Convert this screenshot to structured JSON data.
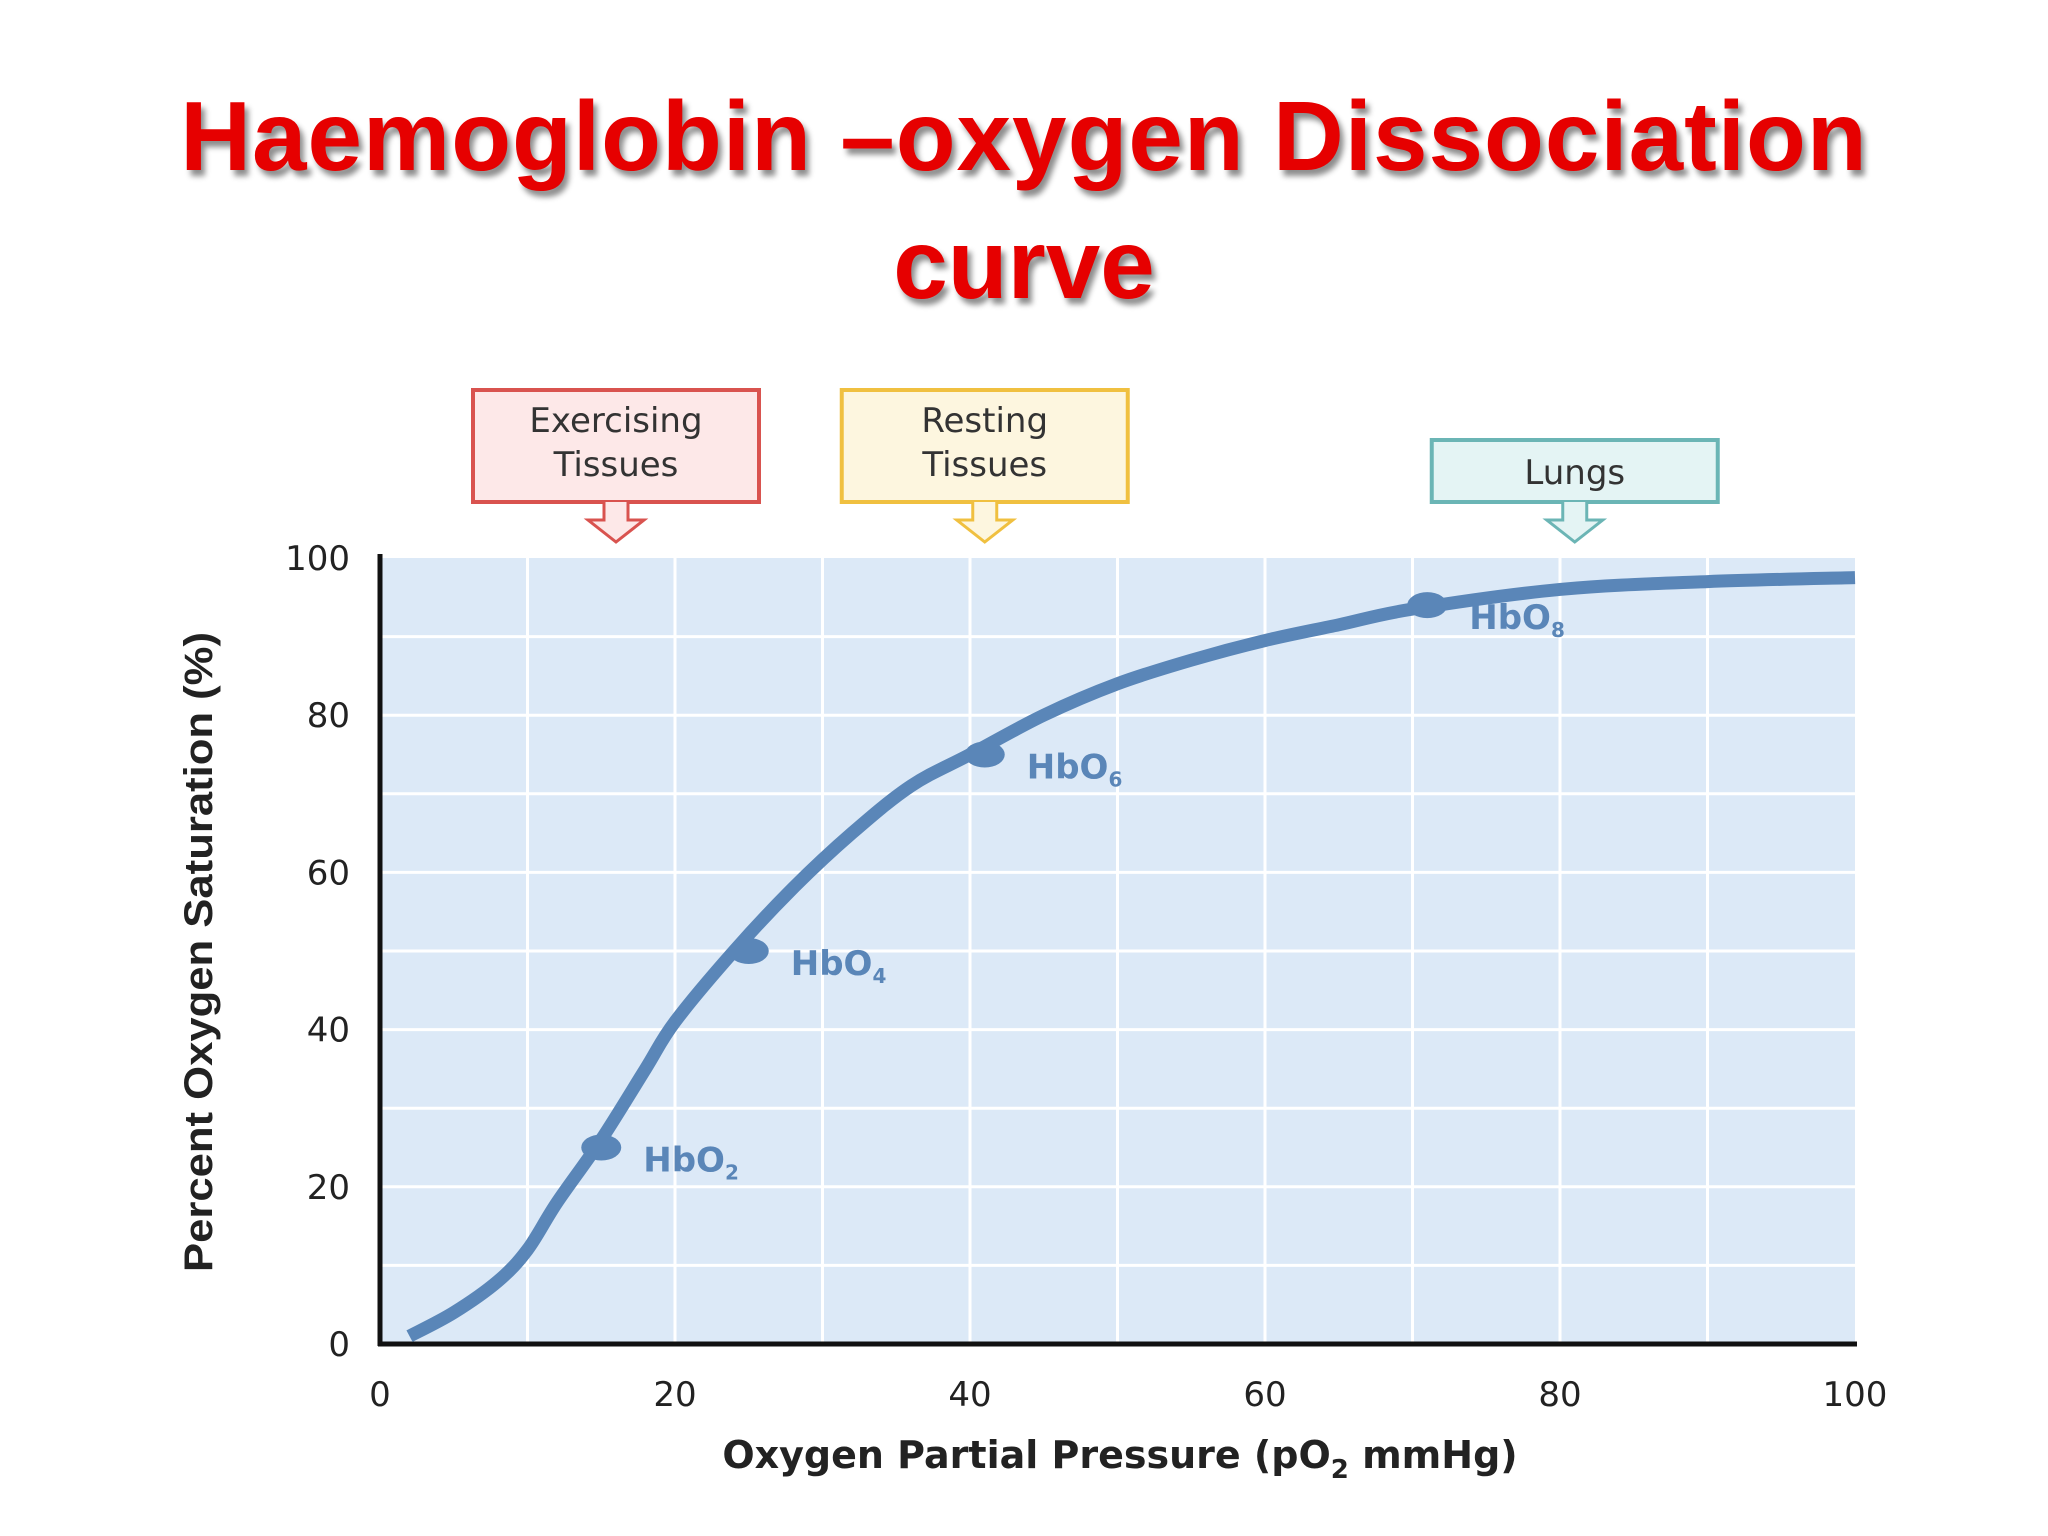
{
  "title_line1": "Haemoglobin –oxygen Dissociation",
  "title_line2": "curve",
  "chart_data": {
    "type": "line",
    "title": "Haemoglobin –oxygen Dissociation curve",
    "xlabel_main": "Oxygen Partial Pressure (pO",
    "xlabel_sub": "2",
    "xlabel_tail": " mmHg)",
    "ylabel": "Percent Oxygen Saturation (%)",
    "xlim": [
      0,
      100
    ],
    "ylim": [
      0,
      100
    ],
    "x_ticks": [
      "0",
      "20",
      "40",
      "60",
      "80",
      "100"
    ],
    "y_ticks": [
      "0",
      "20",
      "40",
      "60",
      "80",
      "100"
    ],
    "grid": true,
    "line_color": "#5a86b8",
    "plot_bg": "#dce9f7",
    "series": [
      {
        "x": [
          2,
          5,
          8,
          10,
          12,
          15,
          18,
          20,
          24,
          28,
          32,
          36,
          40,
          45,
          50,
          55,
          60,
          65,
          70,
          80,
          90,
          100
        ],
        "y": [
          1,
          4,
          8,
          12,
          18,
          26,
          35,
          41,
          50,
          58,
          65,
          71,
          75,
          80,
          84,
          87,
          89.5,
          91.5,
          93.5,
          96,
          97,
          97.5
        ]
      }
    ],
    "points": [
      {
        "x": 15,
        "y": 25,
        "label": "HbO",
        "sub": "2"
      },
      {
        "x": 25,
        "y": 50,
        "label": "HbO",
        "sub": "4"
      },
      {
        "x": 41,
        "y": 75,
        "label": "HbO",
        "sub": "6"
      },
      {
        "x": 71,
        "y": 94,
        "label": "HbO",
        "sub": "8"
      }
    ],
    "regions": [
      {
        "x": 16,
        "lines": [
          "Exercising",
          "Tissues"
        ],
        "border": "#d9534f",
        "fill": "#fde8e8"
      },
      {
        "x": 41,
        "lines": [
          "Resting",
          "Tissues"
        ],
        "border": "#f0c040",
        "fill": "#fdf6df"
      },
      {
        "x": 81,
        "lines": [
          "Lungs"
        ],
        "border": "#6bb5b5",
        "fill": "#e4f4f4"
      }
    ]
  }
}
